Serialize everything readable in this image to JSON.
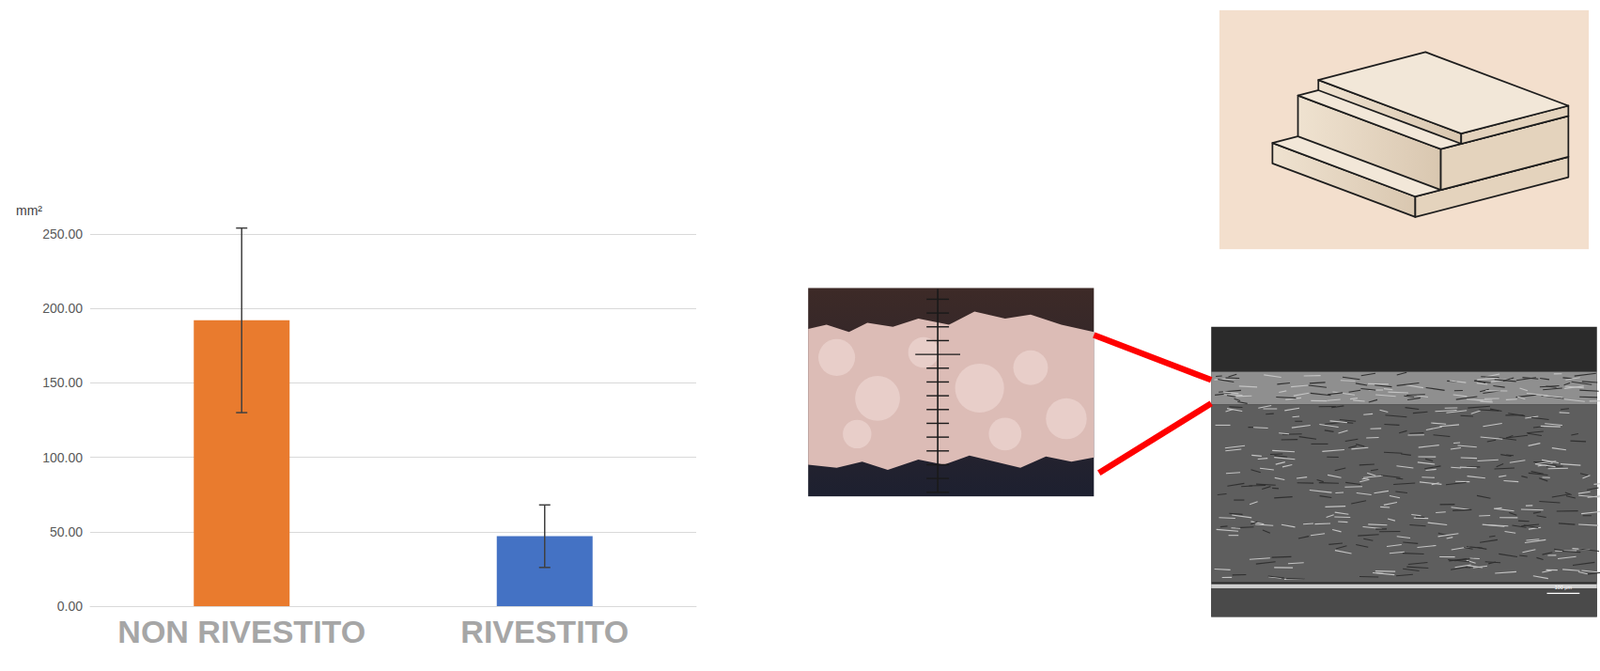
{
  "chart_data": {
    "type": "bar",
    "y_label": "mm²",
    "categories": [
      "NON RIVESTITO",
      "RIVESTITO"
    ],
    "values": [
      192,
      47
    ],
    "errors": [
      62,
      21
    ],
    "colors": [
      "#e97b2e",
      "#4472c4"
    ],
    "ylim": [
      0,
      250
    ],
    "yticks": [
      {
        "value": 0,
        "label": "0.00"
      },
      {
        "value": 50,
        "label": "50.00"
      },
      {
        "value": 100,
        "label": "100.00"
      },
      {
        "value": 150,
        "label": "150.00"
      },
      {
        "value": 200,
        "label": "200.00"
      },
      {
        "value": 250,
        "label": "250.00"
      }
    ],
    "grid": true
  },
  "sem_image": {
    "scale_bar": "100 μm"
  }
}
